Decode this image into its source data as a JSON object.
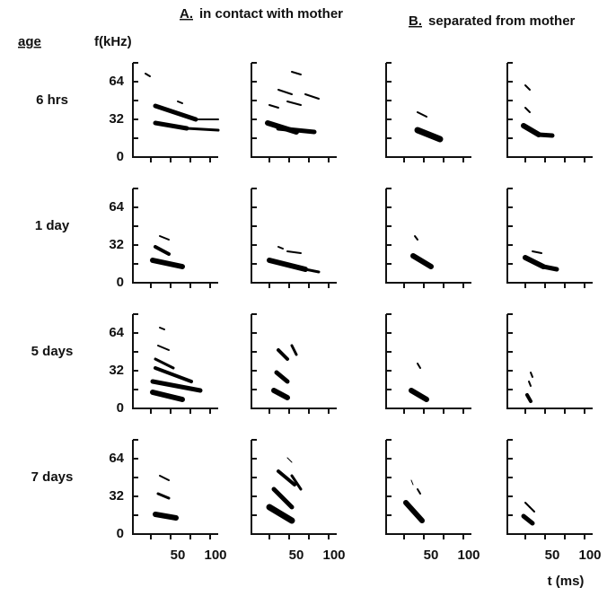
{
  "header": {
    "a_label": "A.",
    "a_title": "in contact with mother",
    "b_label": "B.",
    "b_title": "separated from mother"
  },
  "age_heading": "age",
  "y_axis_label": "f(kHz)",
  "x_axis_label": "t (ms)",
  "rows": [
    {
      "age": "6 hrs"
    },
    {
      "age": "1 day"
    },
    {
      "age": "5 days"
    },
    {
      "age": "7 days"
    }
  ],
  "yticks": [
    "64",
    "32",
    "0"
  ],
  "xticks": [
    "50",
    "100"
  ]
}
